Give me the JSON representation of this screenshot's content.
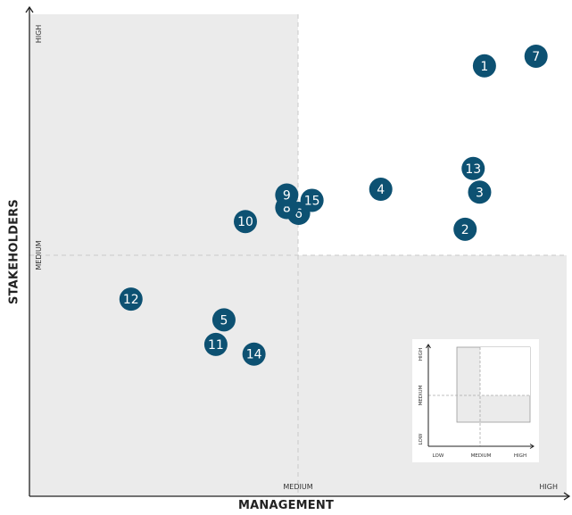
{
  "chart_data": {
    "type": "scatter",
    "xlabel": "MANAGEMENT",
    "ylabel": "STAKEHOLDERS",
    "x_ticks": [
      {
        "value": 0.5,
        "label": "MEDIUM"
      },
      {
        "value": 1.0,
        "label": "HIGH"
      }
    ],
    "y_ticks": [
      {
        "value": 0.5,
        "label": "MEDIUM"
      },
      {
        "value": 1.0,
        "label": "HIGH"
      }
    ],
    "xlim": [
      0,
      1
    ],
    "ylim": [
      0,
      1
    ],
    "grid": false,
    "points": [
      {
        "label": "1",
        "x": 0.847,
        "y": 0.893
      },
      {
        "label": "2",
        "x": 0.811,
        "y": 0.554
      },
      {
        "label": "3",
        "x": 0.838,
        "y": 0.631
      },
      {
        "label": "4",
        "x": 0.654,
        "y": 0.637
      },
      {
        "label": "5",
        "x": 0.362,
        "y": 0.366
      },
      {
        "label": "6",
        "x": 0.501,
        "y": 0.587
      },
      {
        "label": "7",
        "x": 0.943,
        "y": 0.913
      },
      {
        "label": "8",
        "x": 0.479,
        "y": 0.599
      },
      {
        "label": "9",
        "x": 0.479,
        "y": 0.625
      },
      {
        "label": "10",
        "x": 0.402,
        "y": 0.57
      },
      {
        "label": "11",
        "x": 0.347,
        "y": 0.315
      },
      {
        "label": "12",
        "x": 0.189,
        "y": 0.409
      },
      {
        "label": "13",
        "x": 0.826,
        "y": 0.68
      },
      {
        "label": "14",
        "x": 0.418,
        "y": 0.295
      },
      {
        "label": "15",
        "x": 0.526,
        "y": 0.614
      }
    ],
    "shaded_regions": [
      "x < MEDIUM",
      "y < MEDIUM"
    ],
    "inset": {
      "x_ticks": [
        "LOW",
        "MEDIUM",
        "HIGH"
      ],
      "y_ticks": [
        "LOW",
        "MEDIUM",
        "HIGH"
      ]
    }
  },
  "colors": {
    "marker": "#0d5172",
    "marker_text": "#ffffff",
    "shade": "#ebebeb",
    "axis": "#222222",
    "dash": "#c8c8c8"
  }
}
